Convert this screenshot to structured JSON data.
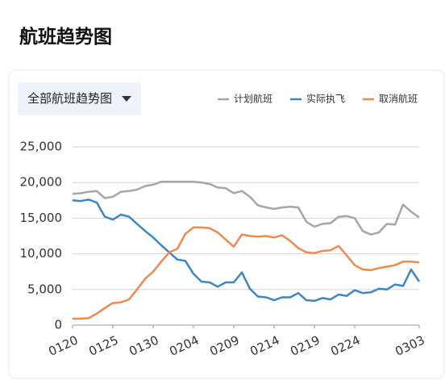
{
  "header": {
    "title": "航班趋势图"
  },
  "dropdown": {
    "label": "全部航班趋势图"
  },
  "chart_data": {
    "type": "line",
    "categories": [
      "0120",
      null,
      null,
      null,
      null,
      "0125",
      null,
      null,
      null,
      null,
      "0130",
      null,
      null,
      null,
      null,
      "0204",
      null,
      null,
      null,
      null,
      "0209",
      null,
      null,
      null,
      null,
      "0214",
      null,
      null,
      null,
      null,
      "0219",
      null,
      null,
      null,
      null,
      "0224",
      null,
      null,
      null,
      null,
      null,
      null,
      null,
      "0303"
    ],
    "series": [
      {
        "name": "计划航班",
        "color": "#a6a6a6",
        "values": [
          18400,
          18500,
          18700,
          18800,
          17800,
          18000,
          18700,
          18800,
          19000,
          19500,
          19700,
          20100,
          20100,
          20100,
          20100,
          20100,
          20000,
          19800,
          19300,
          19200,
          18500,
          18800,
          18000,
          16800,
          16500,
          16300,
          16500,
          16600,
          16500,
          14500,
          13800,
          14200,
          14300,
          15200,
          15300,
          15000,
          13200,
          12700,
          13000,
          14200,
          14100,
          16900,
          15900,
          15100
        ]
      },
      {
        "name": "实际执飞",
        "color": "#3d86c6",
        "values": [
          17500,
          17400,
          17600,
          17200,
          15200,
          14800,
          15500,
          15200,
          14200,
          13200,
          12300,
          11200,
          10200,
          9200,
          9000,
          7200,
          6100,
          6000,
          5400,
          6000,
          6000,
          7400,
          5100,
          4000,
          3900,
          3500,
          3900,
          3900,
          4500,
          3500,
          3400,
          3800,
          3600,
          4300,
          4100,
          4900,
          4500,
          4600,
          5100,
          5000,
          5700,
          5500,
          7800,
          6100
        ]
      },
      {
        "name": "取消航班",
        "color": "#ee8a4e",
        "values": [
          900,
          900,
          1000,
          1600,
          2400,
          3100,
          3200,
          3600,
          5000,
          6500,
          7500,
          8900,
          10200,
          10700,
          12800,
          13700,
          13700,
          13600,
          13000,
          12000,
          11000,
          12700,
          12500,
          12400,
          12500,
          12300,
          12600,
          11800,
          10800,
          10200,
          10100,
          10400,
          10500,
          11100,
          9800,
          8400,
          7800,
          7700,
          8000,
          8200,
          8400,
          8900,
          8900,
          8800
        ]
      }
    ],
    "ylim": [
      0,
      25000
    ],
    "yticks": [
      0,
      {
        "value": 5000,
        "label": "5,000"
      },
      {
        "value": 10000,
        "label": "10,000"
      },
      {
        "value": 15000,
        "label": "15,000"
      },
      {
        "value": 20000,
        "label": "20,000"
      },
      {
        "value": 25000,
        "label": "25,000"
      }
    ],
    "grid": true,
    "legend": "top-right"
  }
}
